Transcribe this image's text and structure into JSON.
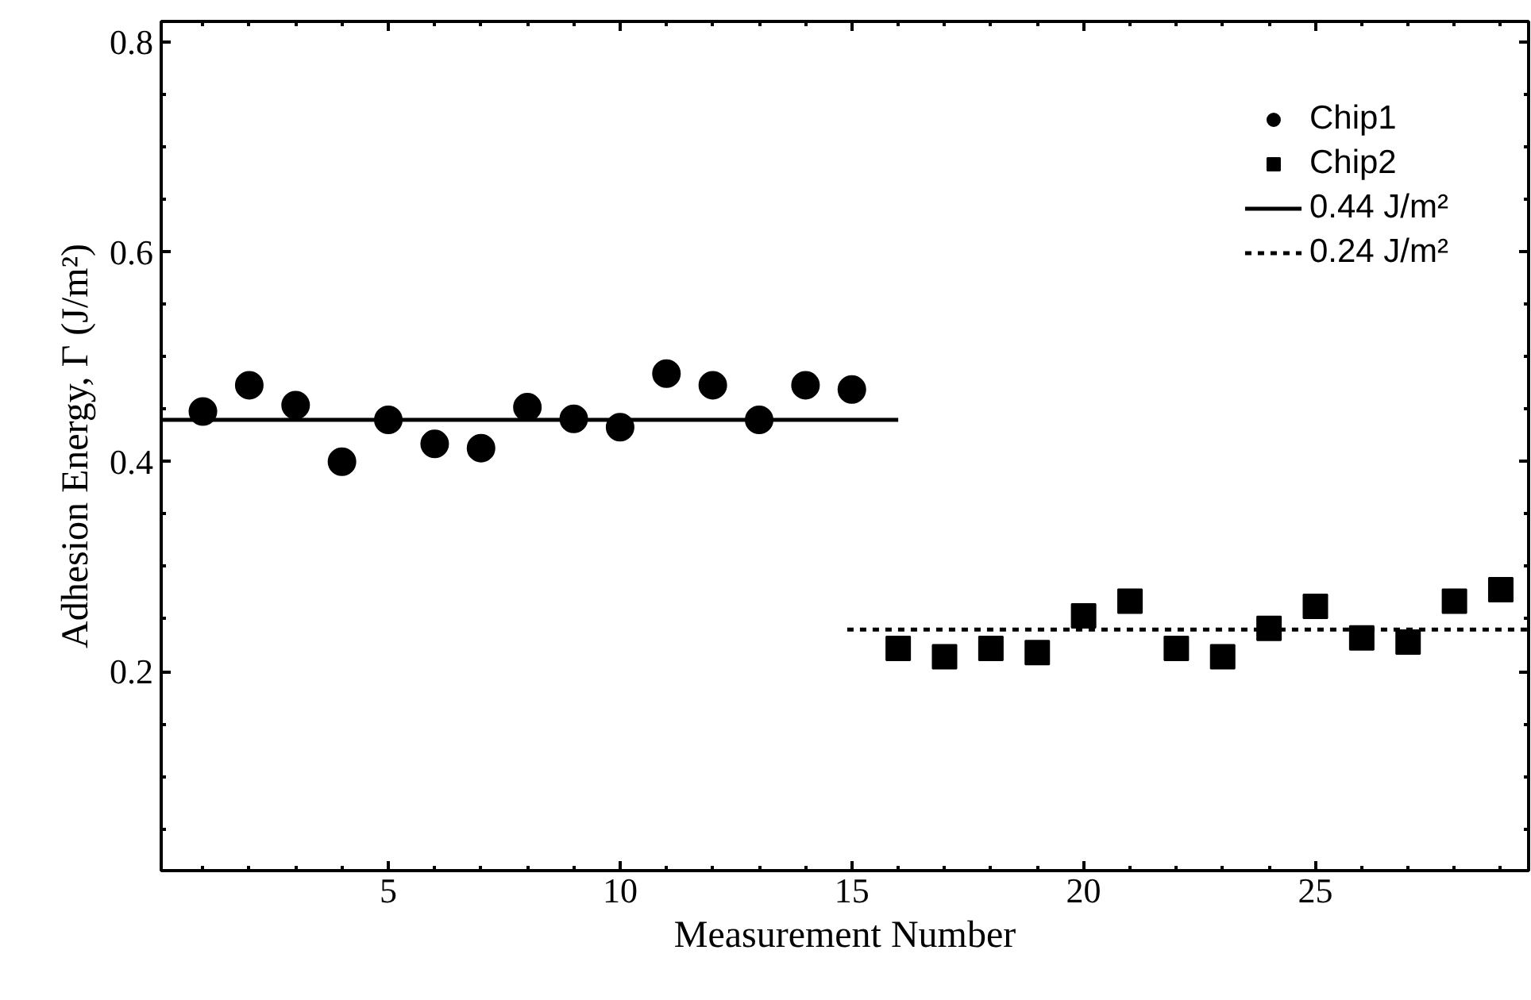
{
  "chart_data": {
    "type": "scatter",
    "xlabel": "Measurement Number",
    "ylabel": "Adhesion Energy, Γ (J/m²)",
    "xlim": [
      0.1,
      29.6
    ],
    "ylim": [
      0.01,
      0.82
    ],
    "xticks": [
      5,
      10,
      15,
      20,
      25
    ],
    "yticks": [
      0.2,
      0.4,
      0.6,
      0.8
    ],
    "grid": false,
    "legend": "top right",
    "series": [
      {
        "name": "Chip1",
        "marker": "circle",
        "color": "#000000",
        "x": [
          1,
          2,
          3,
          4,
          5,
          6,
          7,
          8,
          9,
          10,
          11,
          12,
          13,
          14,
          15
        ],
        "values": [
          0.448,
          0.473,
          0.454,
          0.4,
          0.44,
          0.417,
          0.413,
          0.452,
          0.441,
          0.433,
          0.484,
          0.473,
          0.44,
          0.473,
          0.469
        ]
      },
      {
        "name": "Chip2",
        "marker": "square",
        "color": "#000000",
        "x": [
          16,
          17,
          18,
          19,
          20,
          21,
          22,
          23,
          24,
          25,
          26,
          27,
          28,
          29
        ],
        "values": [
          0.222,
          0.214,
          0.222,
          0.218,
          0.253,
          0.267,
          0.222,
          0.214,
          0.241,
          0.262,
          0.232,
          0.228,
          0.267,
          0.278
        ]
      },
      {
        "name": "0.44 J/m²",
        "type": "line",
        "line_style": "solid",
        "color": "#000000",
        "x": [
          0.1,
          16
        ],
        "values": [
          0.44,
          0.44
        ]
      },
      {
        "name": "0.24 J/m²",
        "type": "line",
        "line_style": "dashed",
        "color": "#000000",
        "x": [
          14.9,
          29.6
        ],
        "values": [
          0.24,
          0.24
        ]
      }
    ]
  }
}
